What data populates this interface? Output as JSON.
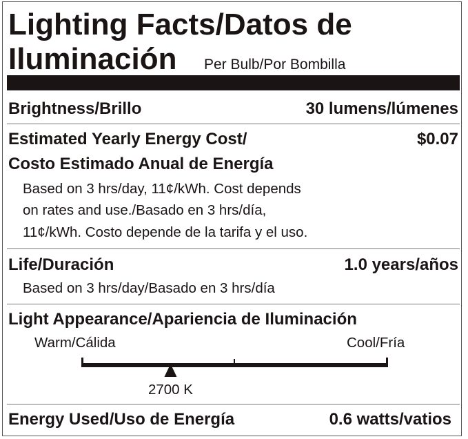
{
  "header": {
    "title_line1": "Lighting Facts/Datos de",
    "title_line2": "Iluminación",
    "per_bulb": "Per Bulb/Por Bombilla"
  },
  "brightness": {
    "label": "Brightness/Brillo",
    "value": "30 lumens/lúmenes"
  },
  "cost": {
    "label_line1": "Estimated Yearly Energy Cost/",
    "label_line2": "Costo Estimado Anual de Energía",
    "value": "$0.07",
    "note_lines": [
      "Based on 3 hrs/day, 11¢/kWh. Cost depends",
      "on rates and use./Basado en 3 hrs/día,",
      "11¢/kWh. Costo depende de la tarifa y el uso."
    ]
  },
  "life": {
    "label": "Life/Duración",
    "value": "1.0 years/años",
    "note": "Based on 3 hrs/day/Basado en 3 hrs/día"
  },
  "appearance": {
    "label": "Light Appearance/Apariencia de Iluminación",
    "warm": "Warm/Cálida",
    "cool": "Cool/Fría",
    "value": "2700 K",
    "scale_position_fraction": 0.29
  },
  "energy": {
    "label": "Energy Used/Uso de Energía",
    "value": "0.6 watts/vatios"
  },
  "colors": {
    "ink": "#1a1514",
    "rule": "#777777"
  }
}
